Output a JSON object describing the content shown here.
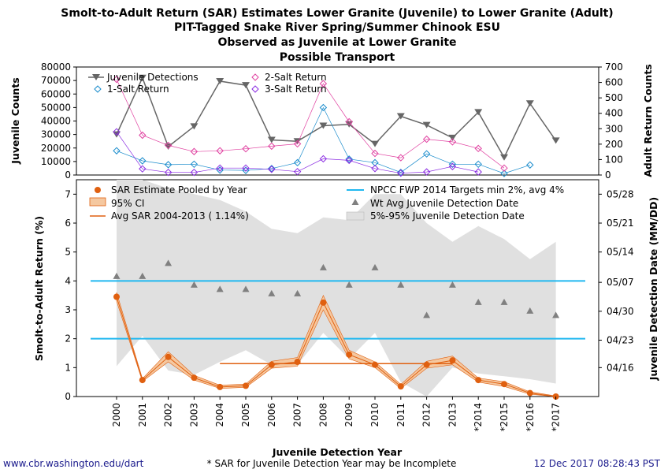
{
  "title": {
    "line1": "Smolt-to-Adult Return (SAR) Estimates Lower Granite (Juvenile) to Lower Granite (Adult)",
    "line2": "PIT-Tagged Snake River Spring/Summer Chinook ESU",
    "line3": "Observed as Juvenile at Lower Granite",
    "line4": "Possible Transport"
  },
  "footer": {
    "left": "www.cbr.washington.edu/dart",
    "center": "* SAR for Juvenile Detection Year may be Incomplete",
    "right": "12 Dec 2017 08:28:43 PST"
  },
  "colors": {
    "juvenile": "#666666",
    "salt1": "#1a8ccc",
    "salt2": "#e040a0",
    "salt3": "#8a2be2",
    "sar": "#e06010",
    "ci_fill": "#f5c8a0",
    "target": "#20b8f0",
    "band": "#e0e0e0",
    "triangle": "#808080"
  },
  "chart_data": [
    {
      "type": "line",
      "ylabel_left": "Juvenile Counts",
      "ylabel_right": "Adult Return Counts",
      "ylim_left": [
        0,
        80000
      ],
      "ylim_right": [
        0,
        700
      ],
      "yticks_left": [
        "0",
        "10000",
        "20000",
        "30000",
        "40000",
        "50000",
        "60000",
        "70000",
        "80000"
      ],
      "yticks_right": [
        "0",
        "100",
        "200",
        "300",
        "400",
        "500",
        "600",
        "700"
      ],
      "legend": [
        "Juvenile Detections",
        "1-Salt Return",
        "2-Salt Return",
        "3-Salt Return"
      ],
      "x": [
        2000,
        2001,
        2002,
        2003,
        2004,
        2005,
        2006,
        2007,
        2008,
        2009,
        2010,
        2011,
        2012,
        2013,
        2014,
        2015,
        2016,
        2017
      ],
      "series": [
        {
          "name": "Juvenile Detections",
          "axis": "left",
          "values": [
            30000,
            72000,
            21000,
            36000,
            69500,
            66500,
            26000,
            25000,
            36500,
            37500,
            23000,
            43500,
            37000,
            27500,
            46500,
            13000,
            53000,
            25500
          ]
        },
        {
          "name": "1-Salt Return",
          "axis": "right",
          "values": [
            157,
            92,
            67,
            70,
            32,
            30,
            42,
            80,
            437,
            103,
            80,
            17,
            137,
            70,
            70,
            10,
            65,
            null
          ]
        },
        {
          "name": "2-Salt Return",
          "axis": "right",
          "values": [
            620,
            258,
            192,
            152,
            157,
            170,
            187,
            202,
            592,
            345,
            140,
            112,
            232,
            215,
            172,
            45,
            null,
            null
          ]
        },
        {
          "name": "3-Salt Return",
          "axis": "right",
          "values": [
            280,
            40,
            17,
            17,
            45,
            45,
            37,
            22,
            105,
            95,
            42,
            12,
            20,
            55,
            20,
            null,
            null,
            null
          ]
        }
      ]
    },
    {
      "type": "line",
      "xlabel": "Juvenile Detection Year",
      "ylabel_left": "Smolt-to-Adult Return (%)",
      "ylabel_right": "Juvenile Detection Date (MM/DD)",
      "ylim": [
        0,
        7.5
      ],
      "yticks_left": [
        "0",
        "1",
        "2",
        "3",
        "4",
        "5",
        "6",
        "7"
      ],
      "yticks_right": [
        "04/16",
        "04/23",
        "04/30",
        "05/07",
        "05/14",
        "05/21",
        "05/28"
      ],
      "categories": [
        "2000",
        "2001",
        "2002",
        "2003",
        "2004",
        "2005",
        "2006",
        "2007",
        "2008",
        "2009",
        "2010",
        "2011",
        "2012",
        "2013",
        "*2014",
        "*2015",
        "*2016",
        "*2017"
      ],
      "legend": [
        "SAR Estimate Pooled by Year",
        "95% CI",
        "Avg SAR 2004-2013 ( 1.14%)",
        "NPCC FWP 2014 Targets min 2%, avg 4%",
        "Wt Avg Juvenile Detection Date",
        "5%-95% Juvenile Detection Date"
      ],
      "series": [
        {
          "name": "SAR Estimate Pooled by Year",
          "values": [
            3.45,
            0.57,
            1.37,
            0.65,
            0.33,
            0.37,
            1.1,
            1.2,
            3.25,
            1.45,
            1.1,
            0.35,
            1.1,
            1.25,
            0.57,
            0.43,
            0.12,
            0.0
          ]
        },
        {
          "name": "95% CI",
          "lower": [
            3.3,
            0.52,
            1.2,
            0.57,
            0.28,
            0.32,
            0.98,
            1.05,
            3.0,
            1.3,
            1.0,
            0.28,
            0.98,
            1.1,
            0.5,
            0.35,
            0.08,
            0.0
          ],
          "upper": [
            3.6,
            0.62,
            1.55,
            0.73,
            0.39,
            0.43,
            1.22,
            1.35,
            3.5,
            1.6,
            1.2,
            0.42,
            1.22,
            1.4,
            0.64,
            0.51,
            0.16,
            0.02
          ]
        },
        {
          "name": "Wt Avg Juvenile Detection Date",
          "values": [
            4.15,
            4.15,
            4.6,
            3.85,
            3.7,
            3.7,
            3.55,
            3.55,
            4.45,
            3.85,
            4.45,
            3.85,
            2.8,
            3.85,
            3.25,
            3.25,
            2.95,
            2.8
          ]
        },
        {
          "name": "5%-95% Juvenile Detection Date",
          "lower": [
            1.05,
            2.1,
            0.9,
            0.75,
            1.2,
            1.6,
            1.1,
            1.1,
            2.2,
            1.3,
            2.2,
            0.5,
            0.0,
            1.0,
            0.8,
            0.7,
            0.6,
            0.45
          ],
          "upper": [
            7.5,
            7.5,
            7.2,
            7.0,
            6.8,
            6.4,
            5.8,
            5.65,
            6.2,
            6.1,
            7.0,
            7.0,
            6.0,
            5.35,
            5.9,
            5.45,
            4.75,
            5.35
          ]
        }
      ],
      "avg_sar": {
        "value": 1.14,
        "from": "2004",
        "to": "2013"
      },
      "targets": [
        2,
        4
      ]
    }
  ]
}
